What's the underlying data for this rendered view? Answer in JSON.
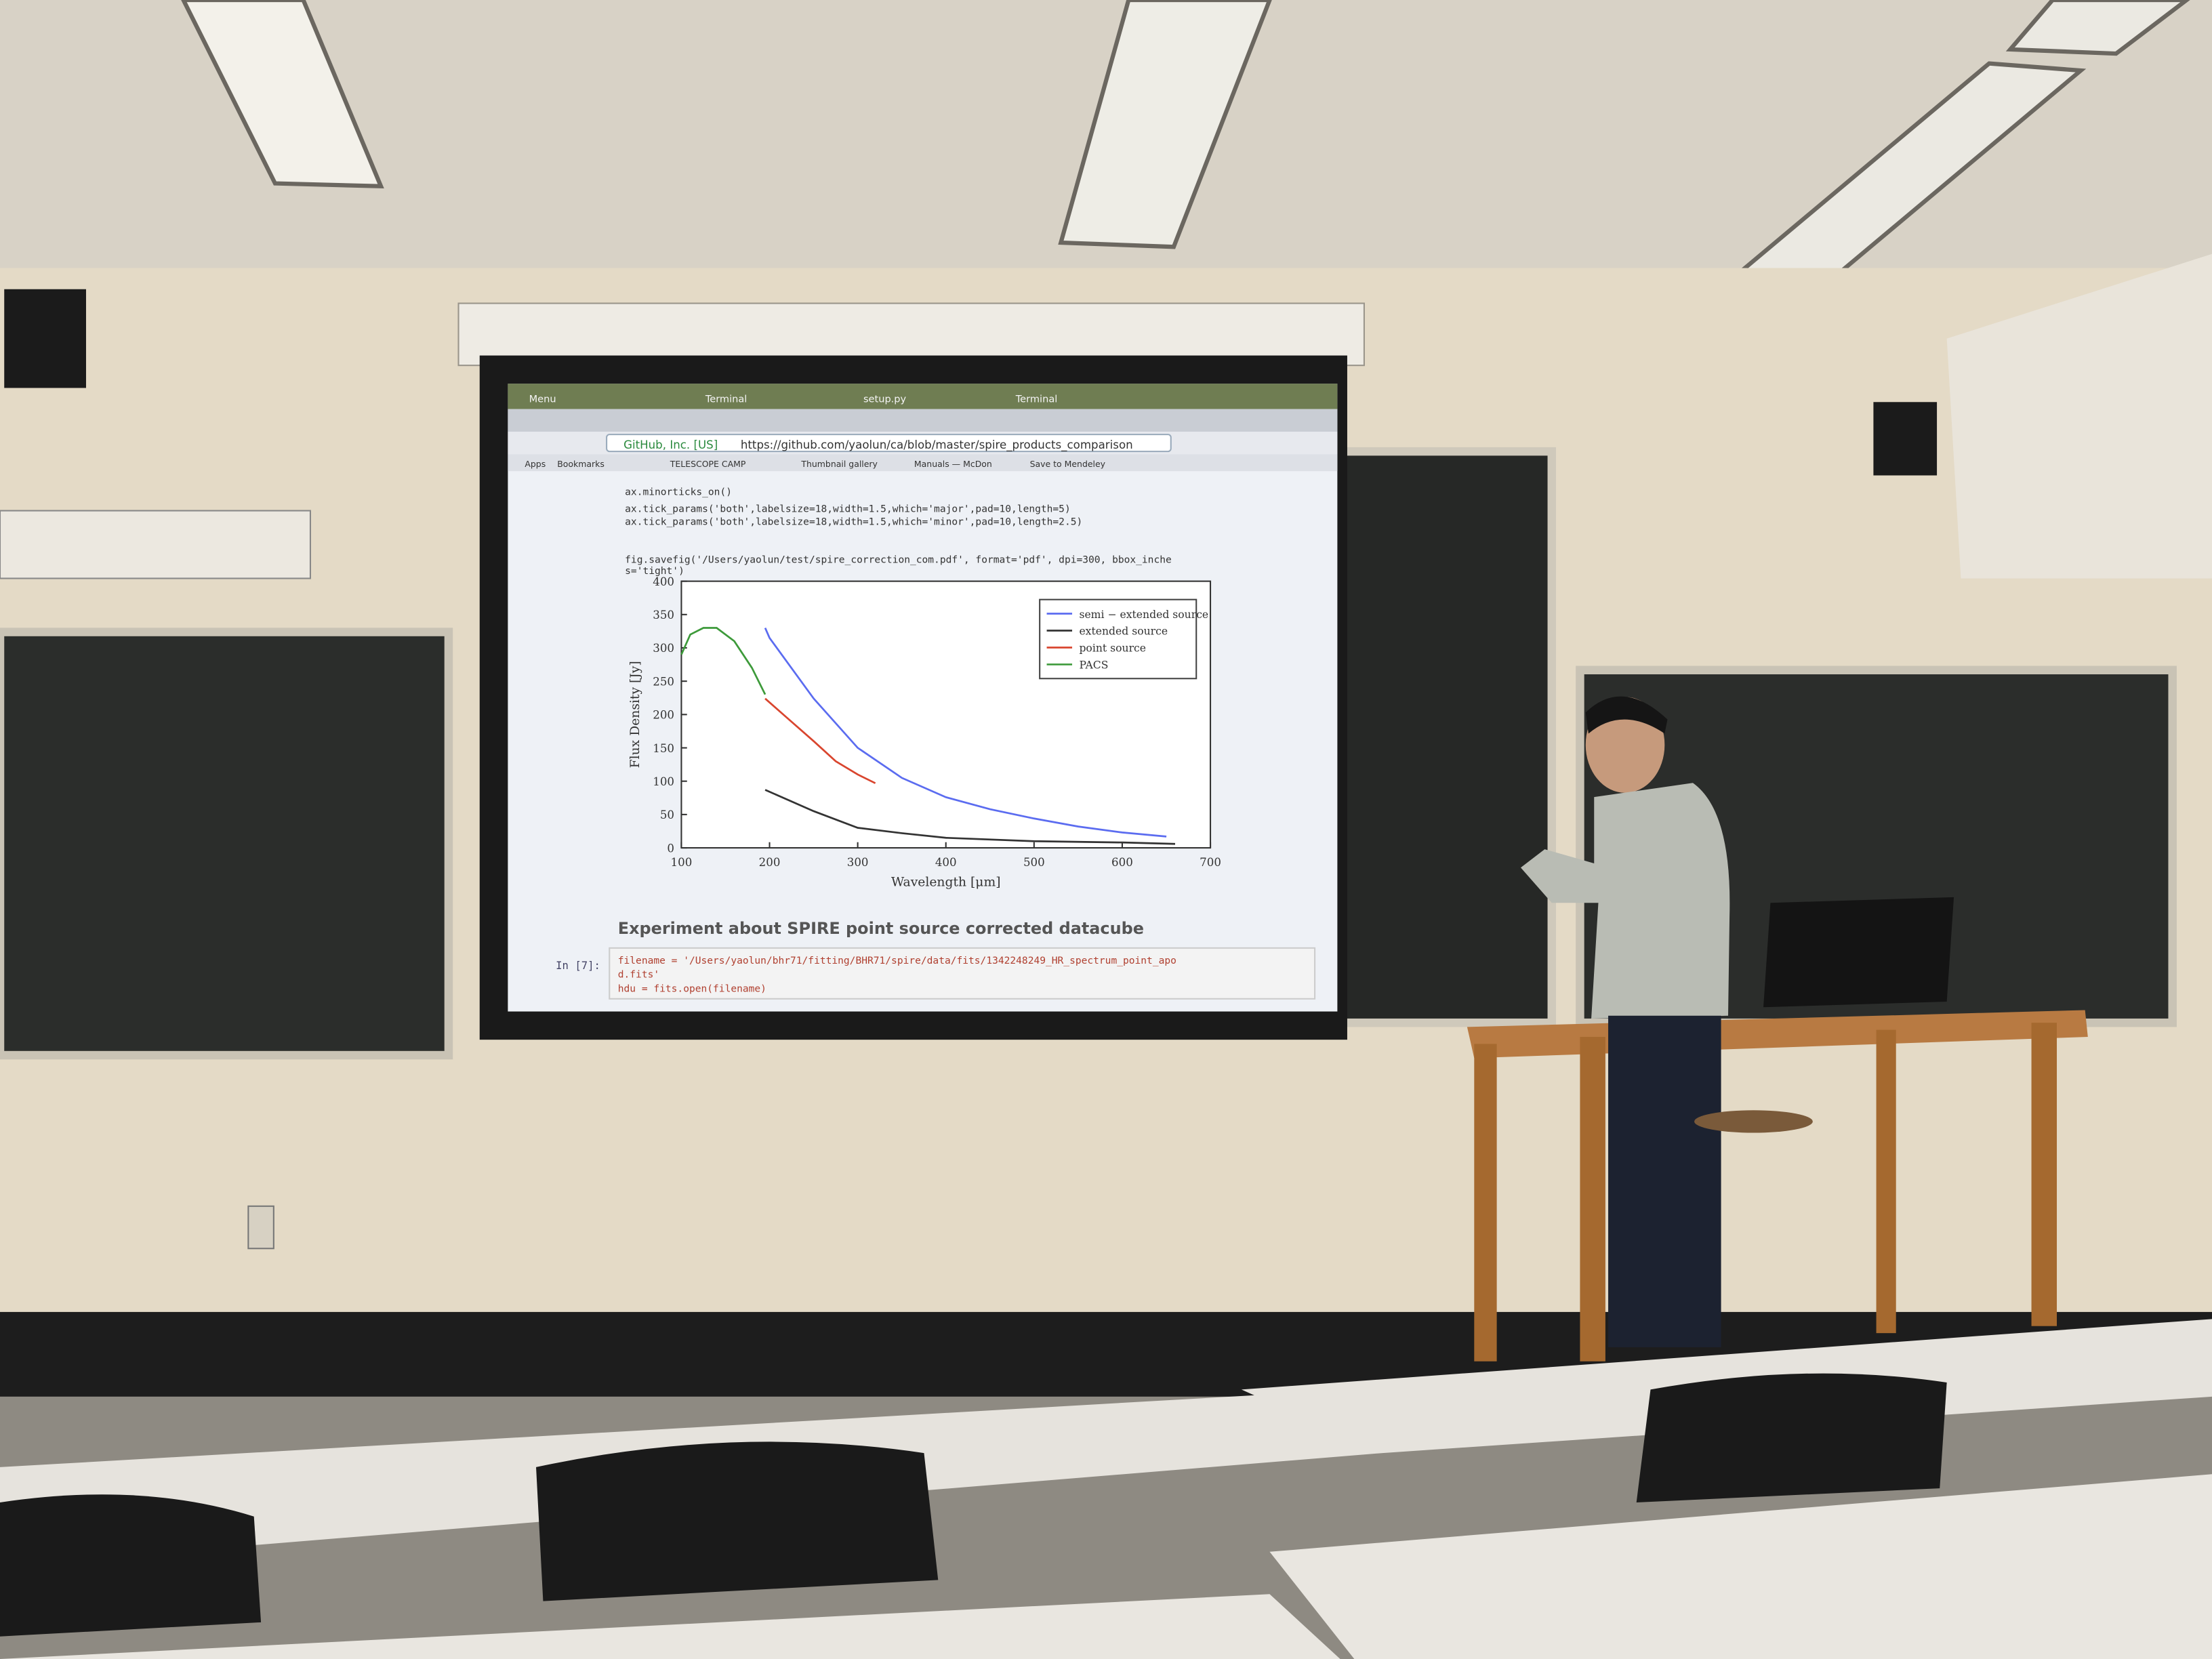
{
  "screen": {
    "browser": {
      "tabs": [
        "Menu",
        "Terminal",
        "setup.py",
        "Terminal"
      ],
      "site": "GitHub, Inc. [US]",
      "url": "https://github.com/yaolun/ca/blob/master/spire_products_comparison",
      "bookmarks": [
        "Apps",
        "Bookmarks",
        "TELESCOPE CAMP",
        "Thumbnail gallery",
        "Manuals — McDon",
        "Save to Mendeley"
      ]
    },
    "notebook": {
      "code_top": [
        "ax.minorticks_on()",
        "ax.tick_params('both',labelsize=18,width=1.5,which='major',pad=10,length=5)",
        "ax.tick_params('both',labelsize=18,width=1.5,which='minor',pad=10,length=2.5)",
        "fig.savefig('/Users/yaolun/test/spire_correction_com.pdf', format='pdf', dpi=300, bbox_inche",
        "s='tight')"
      ],
      "heading": "Experiment about SPIRE point source corrected datacube",
      "prompt": "In [7]:",
      "code_bottom": [
        "filename = '/Users/yaolun/bhr71/fitting/BHR71/spire/data/fits/1342248249_HR_spectrum_point_apo",
        "d.fits'",
        "hdu = fits.open(filename)"
      ]
    }
  },
  "chart_data": {
    "type": "line",
    "x_label": "Wavelength [μm]",
    "y_label": "Flux Density [Jy]",
    "xlim": [
      100,
      700
    ],
    "ylim": [
      0,
      400
    ],
    "xticks": [
      100,
      200,
      300,
      400,
      500,
      600,
      700
    ],
    "yticks": [
      0,
      50,
      100,
      150,
      200,
      250,
      300,
      350,
      400
    ],
    "legend": "upper right",
    "series": [
      {
        "name": "semi − extended source",
        "color": "#5b6cf0",
        "x": [
          195,
          200,
          250,
          300,
          350,
          400,
          450,
          500,
          550,
          600,
          650
        ],
        "values": [
          330,
          315,
          224,
          150,
          105,
          76,
          58,
          44,
          32,
          23,
          17
        ]
      },
      {
        "name": "extended source",
        "color": "#333333",
        "x": [
          195,
          250,
          300,
          350,
          400,
          500,
          600,
          660
        ],
        "values": [
          87,
          55,
          30,
          22,
          15,
          10,
          8,
          6
        ]
      },
      {
        "name": "point source",
        "color": "#d9452e",
        "x": [
          195,
          220,
          250,
          275,
          300,
          320
        ],
        "values": [
          224,
          195,
          160,
          130,
          110,
          97
        ]
      },
      {
        "name": "PACS",
        "color": "#3d9a3a",
        "x": [
          100,
          110,
          125,
          140,
          160,
          180,
          195
        ],
        "values": [
          290,
          320,
          330,
          330,
          310,
          270,
          230
        ]
      }
    ]
  }
}
